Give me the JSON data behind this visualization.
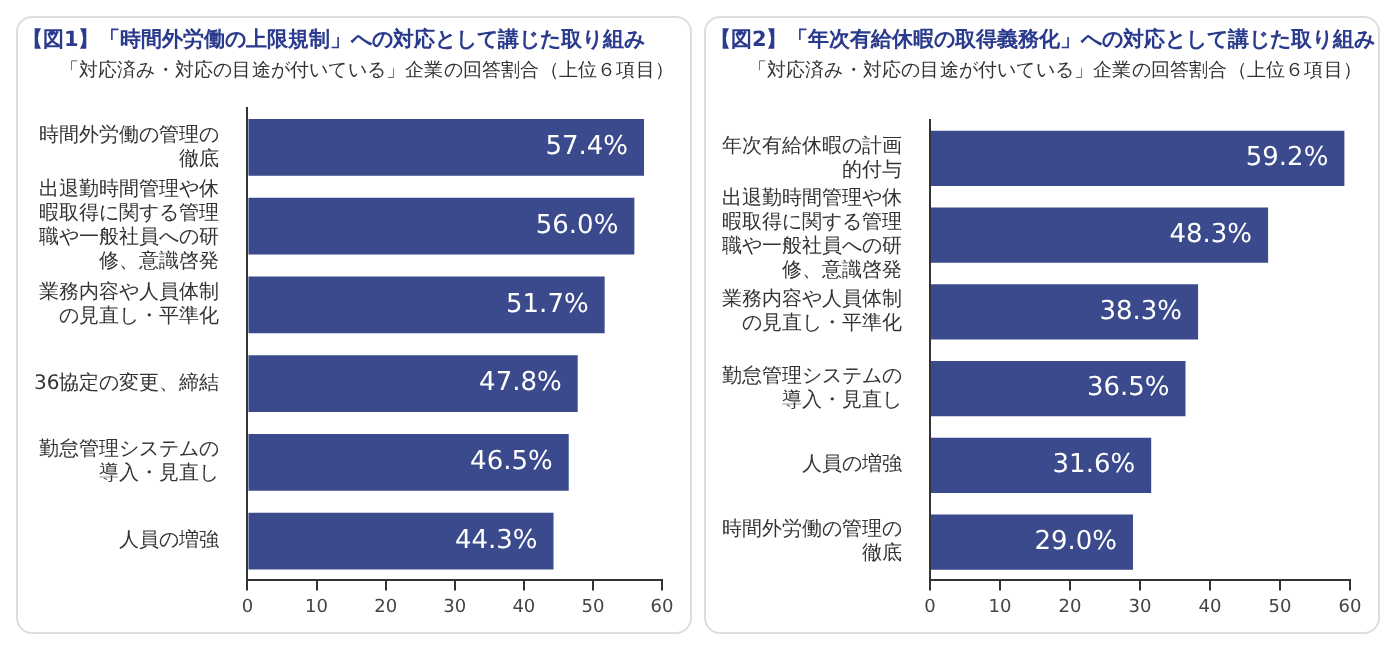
{
  "chart_data": [
    {
      "type": "bar",
      "orientation": "horizontal",
      "title": "【図1】「時間外労働の上限規制」への対応として講じた取り組み",
      "subtitle": "「対応済み・対応の目途が付いている」企業の回答割合（上位６項目）",
      "categories": [
        "時間外労働の管理の徹底",
        "出退勤時間管理や休暇取得に関する管理職や一般社員への研修、意識啓発",
        "業務内容や人員体制の見直し・平準化",
        "36協定の変更、締結",
        "勤怠管理システムの導入・見直し",
        "人員の増強"
      ],
      "values": [
        57.4,
        56.0,
        51.7,
        47.8,
        46.5,
        44.3
      ],
      "value_labels": [
        "57.4%",
        "56.0%",
        "51.7%",
        "47.8%",
        "46.5%",
        "44.3%"
      ],
      "color": "#3a4a8c",
      "xlim": [
        0,
        60
      ],
      "xticks": [
        0,
        10,
        20,
        30,
        40,
        50,
        60
      ],
      "grid": false,
      "legend": false
    },
    {
      "type": "bar",
      "orientation": "horizontal",
      "title": "【図2】「年次有給休暇の取得義務化」への対応として講じた取り組み",
      "subtitle": "「対応済み・対応の目途が付いている」企業の回答割合（上位６項目）",
      "categories": [
        "年次有給休暇の計画的付与",
        "出退勤時間管理や休暇取得に関する管理職や一般社員への研修、意識啓発",
        "業務内容や人員体制の見直し・平準化",
        "勤怠管理システムの導入・見直し",
        "人員の増強",
        "時間外労働の管理の徹底"
      ],
      "values": [
        59.2,
        48.3,
        38.3,
        36.5,
        31.6,
        29.0
      ],
      "value_labels": [
        "59.2%",
        "48.3%",
        "38.3%",
        "36.5%",
        "31.6%",
        "29.0%"
      ],
      "color": "#3a4a8c",
      "xlim": [
        0,
        60
      ],
      "xticks": [
        0,
        10,
        20,
        30,
        40,
        50,
        60
      ],
      "grid": false,
      "legend": false
    }
  ]
}
